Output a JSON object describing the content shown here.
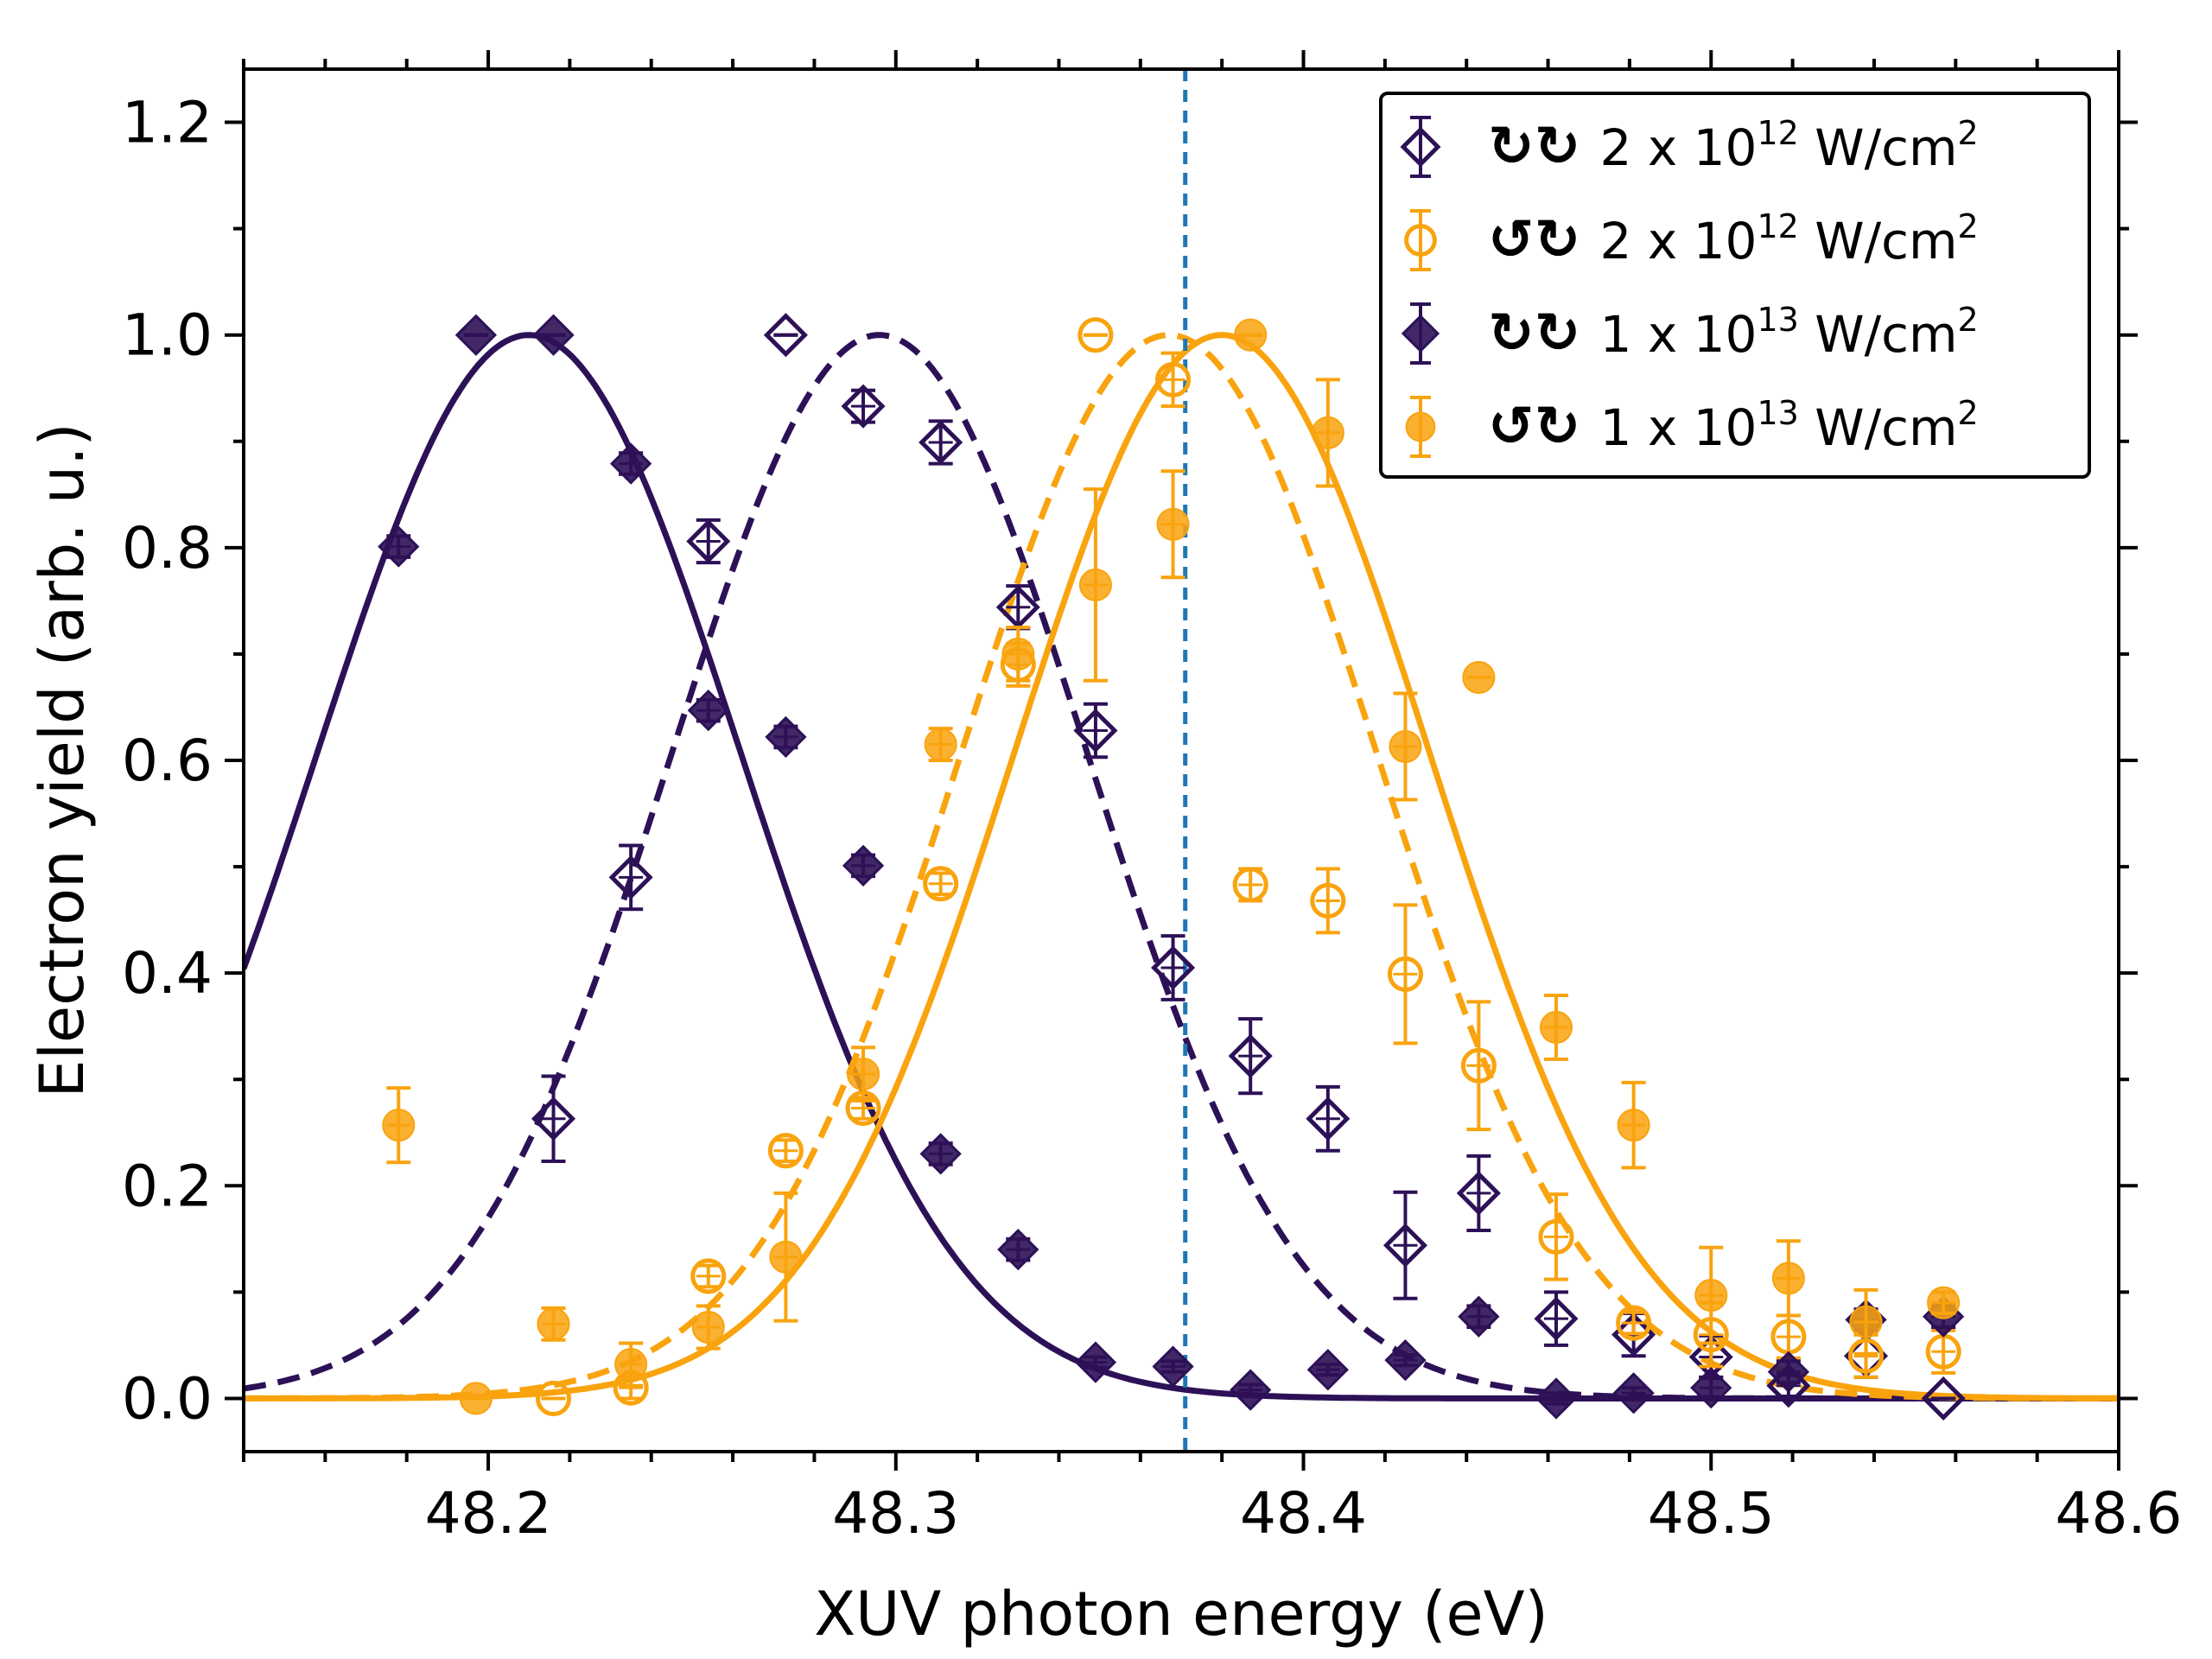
{
  "chart_data": {
    "type": "scatter",
    "xlabel": "XUV photon energy (eV)",
    "ylabel": "Electron yield (arb. u.)",
    "xlim": [
      48.14,
      48.6
    ],
    "ylim": [
      -0.05,
      1.25
    ],
    "xticks": [
      48.2,
      48.3,
      48.4,
      48.5,
      48.6
    ],
    "xtick_labels": [
      "48.2",
      "48.3",
      "48.4",
      "48.5",
      "48.6"
    ],
    "yticks": [
      0.0,
      0.2,
      0.4,
      0.6,
      0.8,
      1.0,
      1.2
    ],
    "ytick_labels": [
      "0.0",
      "0.2",
      "0.4",
      "0.6",
      "0.8",
      "1.0",
      "1.2"
    ],
    "vertical_line": {
      "x": 48.371,
      "style": "dashed",
      "color": "#1f77b4"
    },
    "legend_position": "top-right",
    "colors": {
      "purple": "#2d1157",
      "orange": "#f9a30e",
      "vline": "#1f77b4"
    },
    "series": [
      {
        "name": "↻↻ 2 x 10^12 W/cm^2",
        "label_symbols": "↻↻",
        "label_main": "2 x 10",
        "label_exp": "12",
        "label_unit": " W/cm",
        "label_unit_exp": "2",
        "color": "#2d1157",
        "marker": "diamond",
        "filled": false,
        "x": [
          48.216,
          48.235,
          48.254,
          48.273,
          48.292,
          48.311,
          48.33,
          48.349,
          48.368,
          48.387,
          48.406,
          48.425,
          48.443,
          48.462,
          48.481,
          48.5,
          48.519,
          48.538,
          48.557
        ],
        "y": [
          0.263,
          0.49,
          0.806,
          1.0,
          0.933,
          0.899,
          0.744,
          0.628,
          0.405,
          0.322,
          0.263,
          0.144,
          0.193,
          0.075,
          0.06,
          0.039,
          0.012,
          0.04,
          0.0
        ],
        "err": [
          0.04,
          0.03,
          0.02,
          0.0,
          0.015,
          0.02,
          0.02,
          0.025,
          0.03,
          0.035,
          0.03,
          0.05,
          0.035,
          0.025,
          0.02,
          0.02,
          0.01,
          0.02,
          0.0
        ]
      },
      {
        "name": "↺↻ 2 x 10^12 W/cm^2",
        "label_symbols": "↺↻",
        "label_main": "2 x 10",
        "label_exp": "12",
        "label_unit": " W/cm",
        "label_unit_exp": "2",
        "color": "#f9a30e",
        "marker": "circle",
        "filled": false,
        "x": [
          48.216,
          48.235,
          48.254,
          48.273,
          48.292,
          48.311,
          48.33,
          48.349,
          48.368,
          48.387,
          48.406,
          48.425,
          48.443,
          48.462,
          48.481,
          48.5,
          48.519,
          48.538,
          48.557
        ],
        "y": [
          0.0,
          0.01,
          0.115,
          0.233,
          0.273,
          0.484,
          0.69,
          1.0,
          0.958,
          0.483,
          0.468,
          0.399,
          0.313,
          0.152,
          0.071,
          0.06,
          0.058,
          0.04,
          0.044
        ],
        "err": [
          0.0,
          0.01,
          0.01,
          0.01,
          0.01,
          0.01,
          0.02,
          0.0,
          0.025,
          0.015,
          0.03,
          0.065,
          0.06,
          0.04,
          0.01,
          0.03,
          0.02,
          0.02,
          0.02
        ]
      },
      {
        "name": "↻↻ 1 x 10^13 W/cm^2",
        "label_symbols": "↻↻",
        "label_main": "1 x 10",
        "label_exp": "13",
        "label_unit": " W/cm",
        "label_unit_exp": "2",
        "color": "#2d1157",
        "marker": "diamond",
        "filled": true,
        "x": [
          48.178,
          48.197,
          48.216,
          48.235,
          48.254,
          48.273,
          48.292,
          48.311,
          48.33,
          48.349,
          48.368,
          48.387,
          48.406,
          48.425,
          48.443,
          48.462,
          48.481,
          48.5,
          48.519,
          48.538,
          48.557
        ],
        "y": [
          0.801,
          1.0,
          1.0,
          0.879,
          0.647,
          0.622,
          0.501,
          0.23,
          0.14,
          0.034,
          0.03,
          0.008,
          0.027,
          0.036,
          0.077,
          0.0,
          0.005,
          0.01,
          0.025,
          0.074,
          0.077
        ],
        "err": [
          0.01,
          0.0,
          0.0,
          0.01,
          0.01,
          0.01,
          0.01,
          0.01,
          0.01,
          0.005,
          0.005,
          0.005,
          0.005,
          0.005,
          0.01,
          0.005,
          0.005,
          0.01,
          0.01,
          0.01,
          0.01
        ]
      },
      {
        "name": "↺↻ 1 x 10^13 W/cm^2",
        "label_symbols": "↺↻",
        "label_main": "1 x 10",
        "label_exp": "13",
        "label_unit": " W/cm",
        "label_unit_exp": "2",
        "color": "#f9a30e",
        "marker": "circle",
        "filled": true,
        "x": [
          48.178,
          48.197,
          48.216,
          48.235,
          48.254,
          48.273,
          48.292,
          48.311,
          48.33,
          48.349,
          48.368,
          48.387,
          48.406,
          48.425,
          48.443,
          48.462,
          48.481,
          48.5,
          48.519,
          48.538,
          48.557
        ],
        "y": [
          0.257,
          0.0,
          0.07,
          0.032,
          0.067,
          0.133,
          0.305,
          0.615,
          0.7,
          0.765,
          0.822,
          1.0,
          0.908,
          0.613,
          0.678,
          0.349,
          0.257,
          0.097,
          0.113,
          0.072,
          0.09
        ],
        "err": [
          0.035,
          0.0,
          0.015,
          0.02,
          0.02,
          0.06,
          0.025,
          0.015,
          0.025,
          0.09,
          0.05,
          0.0,
          0.05,
          0.05,
          0.0,
          0.03,
          0.04,
          0.045,
          0.035,
          0.03,
          0.01
        ]
      }
    ],
    "fit_curves": [
      {
        "name": "fit ↻↻ 1 x 10^13",
        "color": "#2d1157",
        "style": "solid",
        "center": 48.21,
        "sigma": 0.052,
        "amplitude": 1.0
      },
      {
        "name": "fit ↻↻ 2 x 10^12",
        "color": "#2d1157",
        "style": "dashed",
        "center": 48.296,
        "sigma": 0.051,
        "amplitude": 1.0
      },
      {
        "name": "fit ↺↻ 2 x 10^12",
        "color": "#f9a30e",
        "style": "dashed",
        "center": 48.367,
        "sigma": 0.051,
        "amplitude": 1.0
      },
      {
        "name": "fit ↺↻ 1 x 10^13",
        "color": "#f9a30e",
        "style": "solid",
        "center": 48.38,
        "sigma": 0.051,
        "amplitude": 1.0
      }
    ]
  }
}
